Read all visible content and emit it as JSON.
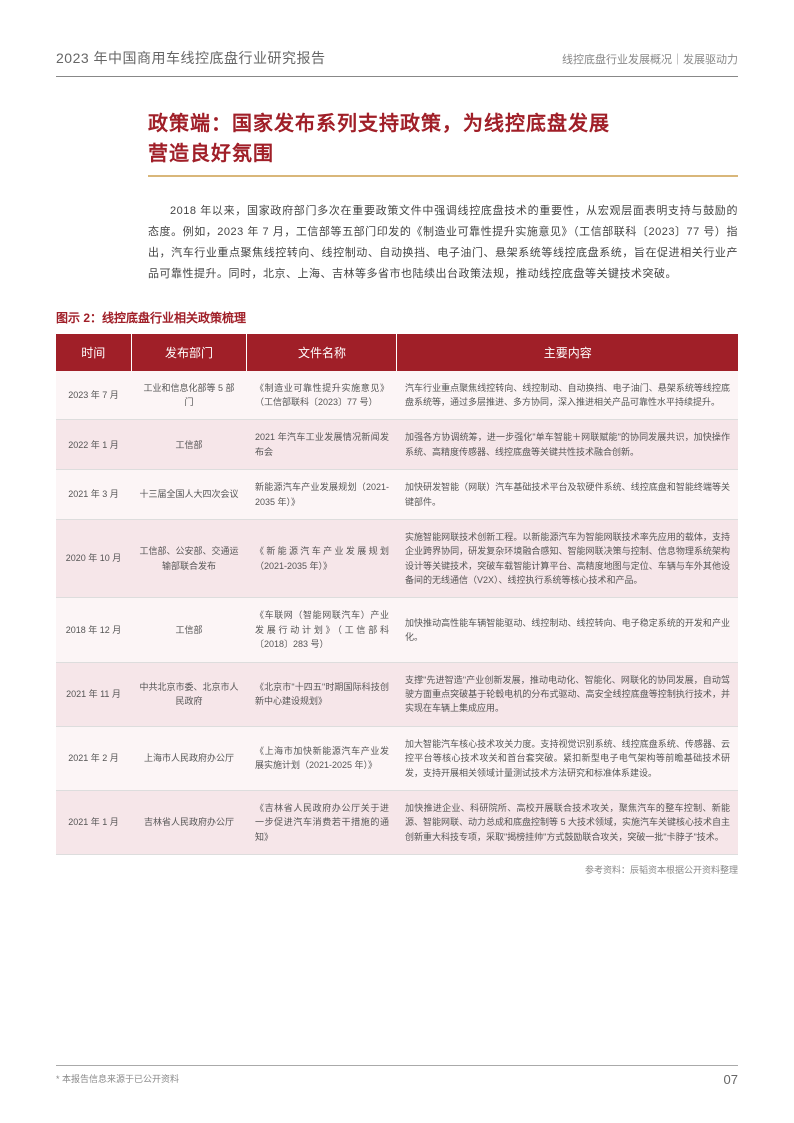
{
  "header": {
    "report_title": "2023 年中国商用车线控底盘行业研究报告",
    "breadcrumb": "线控底盘行业发展概况｜发展驱动力"
  },
  "colors": {
    "accent": "#a01f28",
    "accent_light": "#c05860",
    "divider_gold": "#d9b77a",
    "row_even": "#f6e6e9",
    "row_odd": "#fcf5f6",
    "table_border": "#dddddd"
  },
  "section": {
    "title_line1": "政策端：国家发布系列支持政策，为线控底盘发展",
    "title_line2": "营造良好氛围"
  },
  "body": "2018 年以来，国家政府部门多次在重要政策文件中强调线控底盘技术的重要性，从宏观层面表明支持与鼓励的态度。例如，2023 年 7 月，工信部等五部门印发的《制造业可靠性提升实施意见》（工信部联科〔2023〕77 号）指出，汽车行业重点聚焦线控转向、线控制动、自动换挡、电子油门、悬架系统等线控底盘系统，旨在促进相关行业产品可靠性提升。同时，北京、上海、吉林等多省市也陆续出台政策法规，推动线控底盘等关键技术突破。",
  "figure": {
    "caption": "图示 2：线控底盘行业相关政策梳理"
  },
  "table": {
    "headers": [
      "时间",
      "发布部门",
      "文件名称",
      "主要内容"
    ],
    "rows": [
      {
        "time": "2023 年 7 月",
        "dept": "工业和信息化部等 5 部门",
        "doc": "《制造业可靠性提升实施意见》（工信部联科〔2023〕77 号）",
        "content": "汽车行业重点聚焦线控转向、线控制动、自动换挡、电子油门、悬架系统等线控底盘系统等，通过多层推进、多方协同，深入推进相关产品可靠性水平持续提升。"
      },
      {
        "time": "2022 年 1 月",
        "dept": "工信部",
        "doc": "2021 年汽车工业发展情况新闻发布会",
        "content": "加强各方协调统筹，进一步强化\"单车智能＋网联赋能\"的协同发展共识，加快操作系统、高精度传感器、线控底盘等关键共性技术融合创新。"
      },
      {
        "time": "2021 年 3 月",
        "dept": "十三届全国人大四次会议",
        "doc": "新能源汽车产业发展规划（2021- 2035 年）》",
        "content": "加快研发智能（网联）汽车基础技术平台及软硬件系统、线控底盘和智能终端等关键部件。"
      },
      {
        "time": "2020 年 10 月",
        "dept": "工信部、公安部、交通运输部联合发布",
        "doc": "《新能源汽车产业发展规划（2021-2035 年）》",
        "content": "实施智能网联技术创新工程。以新能源汽车为智能网联技术率先应用的载体，支持企业跨界协同，研发复杂环境融合感知、智能网联决策与控制、信息物理系统架构设计等关键技术，突破车载智能计算平台、高精度地图与定位、车辆与车外其他设备间的无线通信（V2X）、线控执行系统等核心技术和产品。"
      },
      {
        "time": "2018 年 12 月",
        "dept": "工信部",
        "doc": "《车联网（智能网联汽车）产业发展行动计划》（工信部科〔2018〕283 号）",
        "content": "加快推动高性能车辆智能驱动、线控制动、线控转向、电子稳定系统的开发和产业化。"
      },
      {
        "time": "2021 年 11 月",
        "dept": "中共北京市委、北京市人民政府",
        "doc": "《北京市\"十四五\"时期国际科技创新中心建设规划》",
        "content": "支撑\"先进智造\"产业创新发展，推动电动化、智能化、网联化的协同发展，自动驾驶方面重点突破基于轮毂电机的分布式驱动、高安全线控底盘等控制执行技术，并实现在车辆上集成应用。"
      },
      {
        "time": "2021 年 2 月",
        "dept": "上海市人民政府办公厅",
        "doc": "《上海市加快新能源汽车产业发展实施计划（2021-2025 年）》",
        "content": "加大智能汽车核心技术攻关力度。支持视觉识别系统、线控底盘系统、传感器、云控平台等核心技术攻关和首台套突破。紧扣新型电子电气架构等前瞻基础技术研发，支持开展相关领域计量测试技术方法研究和标准体系建设。"
      },
      {
        "time": "2021 年 1 月",
        "dept": "吉林省人民政府办公厅",
        "doc": "《吉林省人民政府办公厅关于进一步促进汽车消费若干措施的通知》",
        "content": "加快推进企业、科研院所、高校开展联合技术攻关，聚焦汽车的整车控制、新能源、智能网联、动力总成和底盘控制等 5 大技术领域，实施汽车关键核心技术自主创新重大科技专项，采取\"揭榜挂帅\"方式鼓励联合攻关，突破一批\"卡脖子\"技术。"
      }
    ]
  },
  "source": "参考资料：辰韬资本根据公开资料整理",
  "footer": {
    "disclaimer": "* 本报告信息来源于已公开资料",
    "page": "07"
  }
}
